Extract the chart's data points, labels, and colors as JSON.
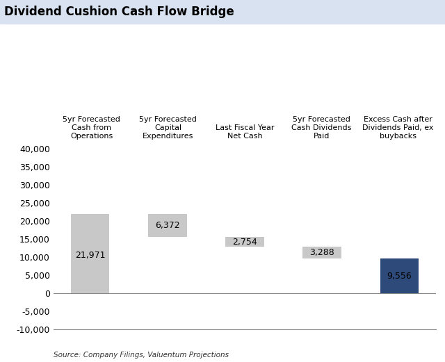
{
  "title": "Dividend Cushion Cash Flow Bridge",
  "categories": [
    "5yr Forecasted\nCash from\nOperations",
    "5yr Forecasted\nCapital\nExpenditures",
    "Last Fiscal Year\nNet Cash",
    "5yr Forecasted\nCash Dividends\nPaid",
    "Excess Cash after\nDividends Paid, ex\nbuybacks"
  ],
  "values": [
    21971,
    6372,
    2754,
    3288,
    9556
  ],
  "bottoms": [
    0,
    15599,
    12845,
    9557,
    0
  ],
  "bar_colors": [
    "#c8c8c8",
    "#c8c8c8",
    "#c8c8c8",
    "#c8c8c8",
    "#2e4a7a"
  ],
  "bar_labels": [
    "21,971",
    "6,372",
    "2,754",
    "3,288",
    "9,556"
  ],
  "label_y_positions": [
    10500,
    18800,
    14200,
    11200,
    4800
  ],
  "ylim": [
    -10000,
    42000
  ],
  "yticks": [
    -10000,
    -5000,
    0,
    5000,
    10000,
    15000,
    20000,
    25000,
    30000,
    35000,
    40000
  ],
  "title_fontsize": 12,
  "tick_fontsize": 9,
  "label_fontsize": 9,
  "header_fontsize": 8,
  "source_text": "Source: Company Filings, Valuentum Projections",
  "title_bg_color": "#d9e2f0",
  "background_color": "#ffffff",
  "bar_width": 0.5
}
